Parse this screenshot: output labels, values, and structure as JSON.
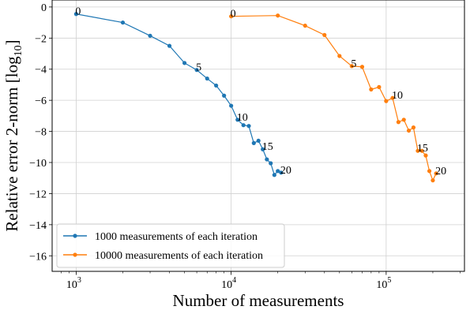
{
  "chart_data": {
    "type": "line",
    "xlabel": "Number of measurements",
    "ylabel": "Relative error 2-norm [log",
    "ylabel_sub": "10",
    "ylabel_close": "]",
    "xscale": "log",
    "xlim": [
      700,
      320000
    ],
    "ylim": [
      -17,
      0.45
    ],
    "grid": true,
    "legend_placement": "lower-left",
    "x_ticks": [
      {
        "value": 1000,
        "base": "10",
        "exp": "3"
      },
      {
        "value": 10000,
        "base": "10",
        "exp": "4"
      },
      {
        "value": 100000,
        "base": "10",
        "exp": "5"
      }
    ],
    "y_ticks": [
      {
        "value": 0,
        "label": "0"
      },
      {
        "value": -2,
        "label": "−2"
      },
      {
        "value": -4,
        "label": "−4"
      },
      {
        "value": -6,
        "label": "−6"
      },
      {
        "value": -8,
        "label": "−8"
      },
      {
        "value": -10,
        "label": "−10"
      },
      {
        "value": -12,
        "label": "−12"
      },
      {
        "value": -14,
        "label": "−14"
      },
      {
        "value": -16,
        "label": "−16"
      }
    ],
    "series": [
      {
        "name": "1000 measurements of each iteration",
        "color": "#1f77b4",
        "x": [
          1000,
          2000,
          3000,
          4000,
          5000,
          6000,
          7000,
          8000,
          9000,
          10000,
          11000,
          12000,
          13000,
          14000,
          15000,
          16000,
          17000,
          18000,
          19000,
          20000,
          21000
        ],
        "y": [
          -0.45,
          -1.0,
          -1.85,
          -2.5,
          -3.6,
          -4.05,
          -4.6,
          -5.05,
          -5.7,
          -6.35,
          -7.25,
          -7.6,
          -7.65,
          -8.75,
          -8.6,
          -9.15,
          -9.8,
          -10.05,
          -10.8,
          -10.55,
          -10.65
        ],
        "annotations": [
          {
            "index": 0,
            "text": "0"
          },
          {
            "index": 5,
            "text": "5"
          },
          {
            "index": 10,
            "text": "10"
          },
          {
            "index": 15,
            "text": "15"
          },
          {
            "index": 20,
            "text": "20"
          }
        ]
      },
      {
        "name": "10000 measurements of each iteration",
        "color": "#ff7f0e",
        "x": [
          10000,
          20000,
          30000,
          40000,
          50000,
          60000,
          70000,
          80000,
          90000,
          100000,
          110000,
          120000,
          130000,
          140000,
          150000,
          160000,
          170000,
          180000,
          190000,
          200000,
          210000
        ],
        "y": [
          -0.6,
          -0.55,
          -1.2,
          -1.8,
          -3.15,
          -3.8,
          -3.85,
          -5.3,
          -5.15,
          -6.05,
          -5.85,
          -7.4,
          -7.25,
          -7.95,
          -7.75,
          -9.25,
          -9.25,
          -9.55,
          -10.55,
          -11.15,
          -10.7
        ],
        "annotations": [
          {
            "index": 0,
            "text": "0"
          },
          {
            "index": 5,
            "text": "5"
          },
          {
            "index": 10,
            "text": "10"
          },
          {
            "index": 15,
            "text": "15"
          },
          {
            "index": 20,
            "text": "20"
          }
        ]
      }
    ]
  }
}
